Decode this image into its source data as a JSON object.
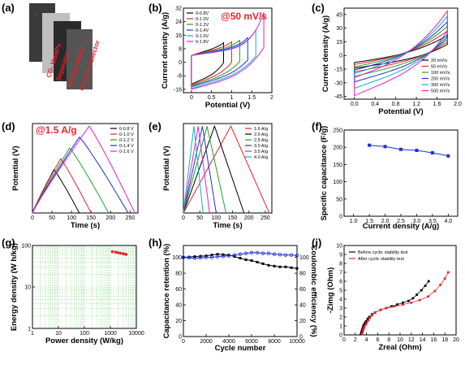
{
  "figure": {
    "labels": [
      "(a)",
      "(b)",
      "(c)",
      "(d)",
      "(e)",
      "(f)",
      "(g)",
      "(h)",
      "(i)"
    ]
  },
  "panel_a": {
    "layers": [
      "CD- MoNPs",
      "Separator",
      "Carbon black",
      "Current collector"
    ]
  },
  "colors": {
    "black": "#000000",
    "red": "#e8232a",
    "green": "#22a022",
    "blue": "#1f2fd0",
    "cyan": "#10b0c8",
    "magenta": "#e020d0",
    "grid_green": "#7ed27e"
  },
  "chart_data": [
    {
      "id": "b",
      "type": "line",
      "annotation": "@50 mV/s",
      "xlabel": "Potential (V)",
      "ylabel": "Current density (A/g)",
      "xlim": [
        -0.2,
        2.0
      ],
      "ylim": [
        -18,
        32
      ],
      "xticks": [
        0.0,
        0.5,
        1.0,
        1.5,
        2.0
      ],
      "yticks": [
        -16,
        -8,
        0,
        8,
        16,
        24,
        32
      ],
      "legend_position": "top-left",
      "series": [
        {
          "name": "0-0.8V",
          "vmax": 0.8,
          "ymax": 11.5,
          "ymin": -13.0
        },
        {
          "name": "0-1.0V",
          "vmax": 1.0,
          "ymax": 12.0,
          "ymin": -13.5
        },
        {
          "name": "0-1.2V",
          "vmax": 1.2,
          "ymax": 13.0,
          "ymin": -14.0
        },
        {
          "name": "0-1.4V",
          "vmax": 1.4,
          "ymax": 14.5,
          "ymin": -14.5
        },
        {
          "name": "0-1.6V",
          "vmax": 1.6,
          "ymax": 19.0,
          "ymin": -15.5
        },
        {
          "name": "0-1.8V",
          "vmax": 1.8,
          "ymax": 29.5,
          "ymin": -16.0
        }
      ]
    },
    {
      "id": "c",
      "type": "line",
      "xlabel": "Potential (V)",
      "ylabel": "Current density (A/g)",
      "xlim": [
        -0.2,
        2.0
      ],
      "ylim": [
        -48,
        52
      ],
      "xticks": [
        0.0,
        0.4,
        0.8,
        1.2,
        1.6,
        2.0
      ],
      "yticks": [
        -45,
        -30,
        -15,
        0,
        15,
        30,
        45
      ],
      "legend_position": "bottom-right",
      "series": [
        {
          "name": "20 mV/s",
          "ymax": 22,
          "ymin": -14
        },
        {
          "name": "50 mV/s",
          "ymax": 27,
          "ymin": -18
        },
        {
          "name": "100 mV/s",
          "ymax": 32,
          "ymin": -23
        },
        {
          "name": "200 mV/s",
          "ymax": 37,
          "ymin": -29
        },
        {
          "name": "300 mV/s",
          "ymax": 43,
          "ymin": -36
        },
        {
          "name": "500 mV/s",
          "ymax": 49,
          "ymin": -44
        }
      ]
    },
    {
      "id": "d",
      "type": "line",
      "annotation": "@1.5 A/g",
      "xlabel": "Time (s)",
      "ylabel": "Potential (V)",
      "xlim": [
        0,
        270
      ],
      "ylim": [
        0,
        1.65
      ],
      "xticks": [
        0,
        50,
        100,
        150,
        200,
        250
      ],
      "legend_position": "top-right",
      "series": [
        {
          "name": "0-0.8 V",
          "t_peak": 55,
          "v_peak": 0.8,
          "t_end": 120
        },
        {
          "name": "0-1.0 V",
          "t_peak": 72,
          "v_peak": 1.0,
          "t_end": 150
        },
        {
          "name": "0-1.2 V",
          "t_peak": 95,
          "v_peak": 1.2,
          "t_end": 195
        },
        {
          "name": "0-1.4 V",
          "t_peak": 120,
          "v_peak": 1.4,
          "t_end": 245
        },
        {
          "name": "0-1.6 V",
          "t_peak": 145,
          "v_peak": 1.6,
          "t_end": 262
        }
      ]
    },
    {
      "id": "e",
      "type": "line",
      "xlabel": "Time (s)",
      "ylabel": "Potential (V)",
      "xlim": [
        0,
        270
      ],
      "ylim": [
        0,
        1.65
      ],
      "xticks": [
        0,
        50,
        100,
        150,
        200,
        250
      ],
      "legend_position": "top-right",
      "series": [
        {
          "name": "1.6 A/g",
          "t_peak": 145,
          "t_end": 262
        },
        {
          "name": "2.0 A/g",
          "t_peak": 95,
          "t_end": 185
        },
        {
          "name": "2.5 A/g",
          "t_peak": 72,
          "t_end": 130
        },
        {
          "name": "3.0 A/g",
          "t_peak": 58,
          "t_end": 100
        },
        {
          "name": "3.5 A/g",
          "t_peak": 45,
          "t_end": 80
        },
        {
          "name": "4.0 A/g",
          "t_peak": 32,
          "t_end": 60
        }
      ]
    },
    {
      "id": "f",
      "type": "scatter",
      "xlabel": "Current density (A/g)",
      "ylabel": "Specific capacitance (F/g)",
      "xlim": [
        0.7,
        4.3
      ],
      "ylim": [
        0,
        250
      ],
      "xticks": [
        1.0,
        1.5,
        2.0,
        2.5,
        3.0,
        3.5,
        4.0
      ],
      "yticks": [
        0,
        50,
        100,
        150,
        200,
        250
      ],
      "x": [
        1.5,
        2.0,
        2.5,
        3.0,
        3.5,
        4.0
      ],
      "y": [
        206,
        202,
        194,
        191,
        184,
        175
      ]
    },
    {
      "id": "g",
      "type": "scatter",
      "xlabel": "Power density (W/kg)",
      "ylabel": "Energy density (W h/kg)",
      "xscale": "log",
      "yscale": "log",
      "grid": true,
      "xlim": [
        1,
        10000
      ],
      "ylim": [
        1,
        100
      ],
      "x": [
        1200,
        1600,
        2000,
        2500,
        3200,
        4000
      ],
      "y": [
        71,
        69,
        67,
        65,
        63,
        61
      ]
    },
    {
      "id": "h",
      "type": "line",
      "xlabel": "Cycle number",
      "ylabel": "Capacitance retention (%)",
      "y2label": "Coulombic efficiency (%)",
      "xlim": [
        0,
        10000
      ],
      "ylim": [
        0,
        115
      ],
      "y2lim": [
        0,
        115
      ],
      "xticks": [
        0,
        2000,
        4000,
        6000,
        8000,
        10000
      ],
      "yticks": [
        0,
        20,
        40,
        60,
        80,
        100
      ],
      "y2ticks": [
        0,
        20,
        40,
        60,
        80,
        100
      ],
      "series": [
        {
          "name": "retention",
          "x": [
            0,
            500,
            1000,
            1500,
            2000,
            2500,
            3000,
            3500,
            4000,
            4500,
            5000,
            5500,
            6000,
            6500,
            7000,
            7500,
            8000,
            8500,
            9000,
            9500,
            10000
          ],
          "y": [
            100,
            100.5,
            101,
            101.5,
            102,
            103,
            104,
            103.5,
            103,
            101,
            99,
            97,
            96,
            94,
            92,
            90,
            89,
            88,
            88,
            87,
            86
          ]
        },
        {
          "name": "coulombic",
          "x": [
            0,
            500,
            1000,
            1500,
            2000,
            2500,
            3000,
            3500,
            4000,
            4500,
            5000,
            5500,
            6000,
            6500,
            7000,
            7500,
            8000,
            8500,
            9000,
            9500,
            10000
          ],
          "y": [
            100,
            99.5,
            99,
            99.5,
            100,
            100,
            101,
            101.5,
            102,
            103,
            104,
            105,
            106,
            106,
            105,
            105,
            104,
            103.5,
            103,
            103,
            102.5
          ]
        }
      ]
    },
    {
      "id": "i",
      "type": "scatter",
      "xlabel": "Zreal (Ohm)",
      "ylabel": "-Zimg (Ohm)",
      "xlim": [
        0,
        20
      ],
      "ylim": [
        0,
        10
      ],
      "xticks": [
        0,
        2,
        4,
        6,
        8,
        10,
        12,
        14,
        16,
        18,
        20
      ],
      "yticks": [
        0,
        1,
        2,
        3,
        4,
        5,
        6,
        7,
        8,
        9,
        10
      ],
      "legend_position": "top-left",
      "series": [
        {
          "name": "Before cyclic stability test",
          "x": [
            3.0,
            3.1,
            3.2,
            3.3,
            3.4,
            3.5,
            3.7,
            3.9,
            4.2,
            4.5,
            5.0,
            5.5,
            6.5,
            7.5,
            8.5,
            9.5,
            10.5,
            11.5,
            12.3,
            13.0,
            13.8,
            14.5,
            15.1
          ],
          "y": [
            0.1,
            0.3,
            0.5,
            0.7,
            0.9,
            1.1,
            1.3,
            1.5,
            1.8,
            2.0,
            2.3,
            2.5,
            2.8,
            3.0,
            3.2,
            3.4,
            3.6,
            3.8,
            4.1,
            4.5,
            5.0,
            5.5,
            6.0
          ]
        },
        {
          "name": "After cyclic stability test",
          "x": [
            3.2,
            3.3,
            3.4,
            3.5,
            3.6,
            3.8,
            4.0,
            4.3,
            4.6,
            5.0,
            5.5,
            6.5,
            7.5,
            9.0,
            10.5,
            12.0,
            13.5,
            15.0,
            16.2,
            17.2,
            18.0,
            18.6
          ],
          "y": [
            0.1,
            0.3,
            0.5,
            0.7,
            0.9,
            1.1,
            1.3,
            1.6,
            1.9,
            2.2,
            2.5,
            2.8,
            3.0,
            3.2,
            3.4,
            3.6,
            3.9,
            4.3,
            4.9,
            5.6,
            6.3,
            7.0
          ]
        }
      ]
    }
  ]
}
